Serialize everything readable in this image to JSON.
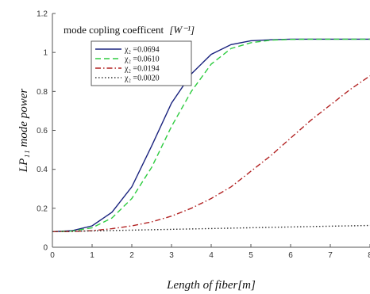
{
  "chart_data": {
    "type": "line",
    "title": "",
    "annotation": "mode copling coefficent",
    "annotation_unit": "[W⁻¹]",
    "xlabel": "Length of fiber[m]",
    "ylabel": "LP₁₁ mode power",
    "xlim": [
      0,
      8
    ],
    "ylim": [
      0,
      1.2
    ],
    "x_ticks": [
      "0",
      "1",
      "2",
      "3",
      "4",
      "5",
      "6",
      "7",
      "8"
    ],
    "y_ticks": [
      "0",
      "0.2",
      "0.4",
      "0.6",
      "0.8",
      "1",
      "1.2"
    ],
    "grid": false,
    "legend_position": "top-left",
    "x": [
      0,
      0.5,
      1,
      1.5,
      2,
      2.5,
      3,
      3.5,
      4,
      4.5,
      5,
      5.5,
      6,
      6.5,
      7,
      7.5,
      8
    ],
    "series": [
      {
        "name": "χ₂ =0.0694",
        "color": "#1a237e",
        "dash": "solid",
        "values": [
          0.08,
          0.085,
          0.11,
          0.18,
          0.31,
          0.52,
          0.74,
          0.89,
          0.99,
          1.04,
          1.06,
          1.065,
          1.068,
          1.068,
          1.068,
          1.068,
          1.068
        ]
      },
      {
        "name": "χ₂ =0.0610",
        "color": "#2ecc40",
        "dash": "dashed",
        "values": [
          0.08,
          0.083,
          0.1,
          0.15,
          0.25,
          0.41,
          0.62,
          0.8,
          0.94,
          1.02,
          1.05,
          1.063,
          1.067,
          1.068,
          1.068,
          1.068,
          1.068
        ]
      },
      {
        "name": "χ₂ =0.0194",
        "color": "#b22222",
        "dash": "dashdot",
        "values": [
          0.08,
          0.081,
          0.085,
          0.095,
          0.11,
          0.13,
          0.16,
          0.2,
          0.25,
          0.31,
          0.39,
          0.47,
          0.56,
          0.65,
          0.73,
          0.81,
          0.88
        ]
      },
      {
        "name": "χ₂ =0.0020",
        "color": "#333333",
        "dash": "dotted",
        "values": [
          0.08,
          0.082,
          0.084,
          0.086,
          0.088,
          0.09,
          0.092,
          0.094,
          0.096,
          0.098,
          0.1,
          0.102,
          0.104,
          0.106,
          0.108,
          0.11,
          0.112
        ]
      }
    ]
  }
}
